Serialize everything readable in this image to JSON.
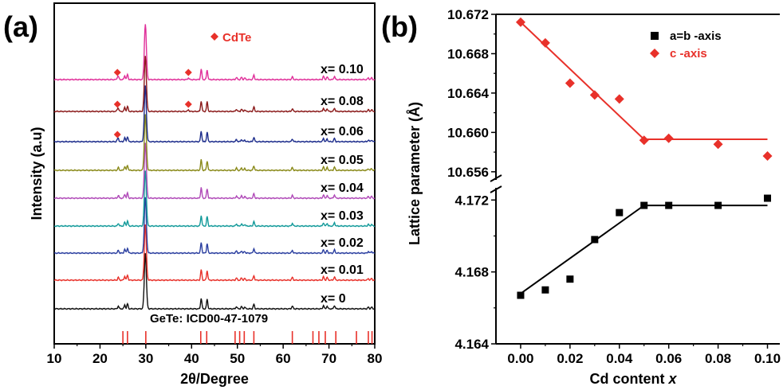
{
  "panels": {
    "a": {
      "label": "(a)"
    },
    "b": {
      "label": "(b)"
    }
  },
  "chart_data": [
    {
      "type": "line",
      "panel": "(a)",
      "xlabel": "2θ/Degree",
      "ylabel": "Intensity (a.u)",
      "xlim": [
        10,
        80
      ],
      "xticks": [
        10,
        20,
        30,
        40,
        50,
        60,
        70,
        80
      ],
      "grid": false,
      "legend": {
        "label": "CdTe",
        "marker": "diamond",
        "color": "#e8312a",
        "position": "top-center"
      },
      "peaks": [
        {
          "x": 24.0,
          "h": 0.05
        },
        {
          "x": 25.4,
          "h": 0.07
        },
        {
          "x": 26.0,
          "h": 0.09
        },
        {
          "x": 29.9,
          "h": 1.0
        },
        {
          "x": 42.1,
          "h": 0.19
        },
        {
          "x": 43.4,
          "h": 0.17
        },
        {
          "x": 49.8,
          "h": 0.04
        },
        {
          "x": 50.9,
          "h": 0.04
        },
        {
          "x": 51.6,
          "h": 0.03
        },
        {
          "x": 53.6,
          "h": 0.08
        },
        {
          "x": 62.0,
          "h": 0.05
        },
        {
          "x": 68.8,
          "h": 0.06
        },
        {
          "x": 69.6,
          "h": 0.05
        },
        {
          "x": 71.2,
          "h": 0.06
        },
        {
          "x": 78.6,
          "h": 0.03
        },
        {
          "x": 79.3,
          "h": 0.03
        }
      ],
      "series": [
        {
          "name": "x= 0",
          "color": "#111111",
          "cdte_peaks": []
        },
        {
          "name": "x= 0.01",
          "color": "#e8312a",
          "cdte_peaks": []
        },
        {
          "name": "x= 0.02",
          "color": "#2b3fa0",
          "cdte_peaks": []
        },
        {
          "name": "x= 0.03",
          "color": "#139a9a",
          "cdte_peaks": []
        },
        {
          "name": "x= 0.04",
          "color": "#b04ab8",
          "cdte_peaks": []
        },
        {
          "name": "x= 0.05",
          "color": "#8a8a1a",
          "cdte_peaks": []
        },
        {
          "name": "x= 0.06",
          "color": "#1d2d8c",
          "cdte_peaks": [
            23.8
          ]
        },
        {
          "name": "x= 0.08",
          "color": "#8b1a1a",
          "cdte_peaks": [
            23.8,
            39.3
          ]
        },
        {
          "name": "x= 0.10",
          "color": "#e0309a",
          "cdte_peaks": [
            23.8,
            39.3
          ]
        }
      ],
      "reference": {
        "label": "GeTe: ICD00-47-1079",
        "color": "#e8312a",
        "lines": [
          25.0,
          26.0,
          30.0,
          42.0,
          43.3,
          49.5,
          50.5,
          51.5,
          53.6,
          62.0,
          66.5,
          67.8,
          69.2,
          71.5,
          76.0,
          78.6,
          79.4
        ]
      }
    },
    {
      "type": "scatter",
      "panel": "(b)",
      "xlabel": "Cd content ",
      "xlabel_italic": "x",
      "ylabel": "Lattice parameter (Å)",
      "xlim": [
        -0.01,
        0.105
      ],
      "xticks": [
        "0.00",
        "0.02",
        "0.04",
        "0.06",
        "0.08",
        "0.10"
      ],
      "grid": false,
      "legend_position": "top-right",
      "upper_axis": {
        "ylim": [
          10.6555,
          10.672
        ],
        "yticks": [
          "10.672",
          "10.668",
          "10.664",
          "10.660",
          "10.656"
        ]
      },
      "lower_axis": {
        "ylim": [
          4.164,
          4.1725
        ],
        "yticks": [
          "4.172",
          "4.168",
          "4.164"
        ]
      },
      "series": [
        {
          "name": "a=b -axis",
          "marker": "square",
          "color": "#000000",
          "axis": "lower",
          "x": [
            0.0,
            0.01,
            0.02,
            0.03,
            0.04,
            0.05,
            0.06,
            0.08,
            0.1
          ],
          "y": [
            4.1667,
            4.167,
            4.1676,
            4.1698,
            4.1713,
            4.1717,
            4.1717,
            4.1717,
            4.1721
          ],
          "fit": [
            [
              0.0,
              4.1668
            ],
            [
              0.05,
              4.1717
            ],
            [
              0.1,
              4.1717
            ]
          ]
        },
        {
          "name": "c -axis",
          "marker": "diamond",
          "color": "#e8312a",
          "axis": "upper",
          "x": [
            0.0,
            0.01,
            0.02,
            0.03,
            0.04,
            0.05,
            0.06,
            0.08,
            0.1
          ],
          "y": [
            10.6712,
            10.6691,
            10.665,
            10.6638,
            10.6634,
            10.6592,
            10.6594,
            10.6588,
            10.6576
          ],
          "fit": [
            [
              0.0,
              10.6712
            ],
            [
              0.05,
              10.6593
            ],
            [
              0.1,
              10.6593
            ]
          ]
        }
      ]
    }
  ]
}
